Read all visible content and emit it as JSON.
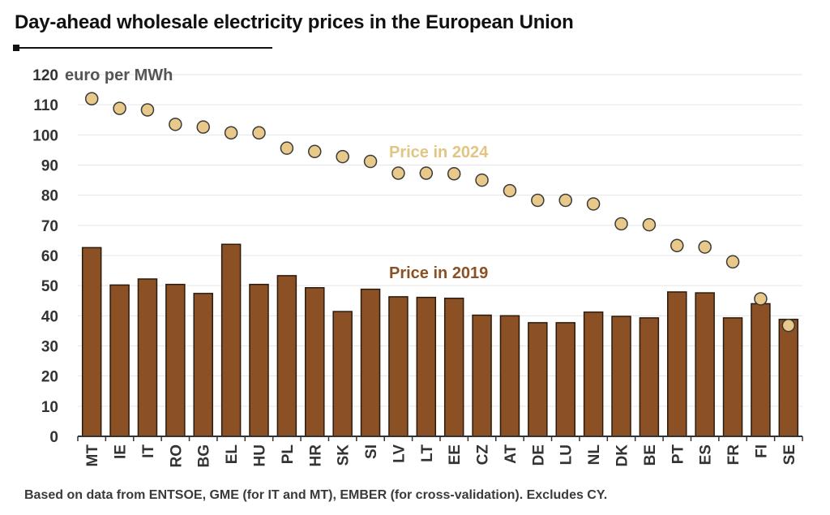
{
  "title": "Day-ahead wholesale electricity prices in the European Union",
  "source_note": "Based on data from ENTSOE, GME (for IT and MT), EMBER (for cross-validation). Excludes CY.",
  "colors": {
    "bar_2019": "#8b5023",
    "bar_stroke": "#2b1a0e",
    "dot_2024": "#e8c98a",
    "dot_stroke": "#3a3a3a",
    "label_2024": "#e2c583",
    "label_2019": "#8b5023",
    "grid": "#e6e6e6"
  },
  "chart_data": {
    "type": "bar",
    "title": "Day-ahead wholesale electricity prices in the European Union",
    "ylabel": "euro per MWh",
    "xlabel": "",
    "ylim": [
      0,
      120
    ],
    "yticks": [
      0,
      10,
      20,
      30,
      40,
      50,
      60,
      70,
      80,
      90,
      100,
      110,
      120
    ],
    "grid": true,
    "categories": [
      "MT",
      "IE",
      "IT",
      "RO",
      "BG",
      "EL",
      "HU",
      "PL",
      "HR",
      "SK",
      "SI",
      "LV",
      "LT",
      "EE",
      "CZ",
      "AT",
      "DE",
      "LU",
      "NL",
      "DK",
      "BE",
      "PT",
      "ES",
      "FR",
      "FI",
      "SE"
    ],
    "series": [
      {
        "name": "Price in 2019",
        "mark": "bar",
        "values": [
          62.6,
          50.2,
          52.2,
          50.4,
          47.4,
          63.7,
          50.4,
          53.3,
          49.3,
          41.4,
          48.8,
          46.3,
          46.1,
          45.8,
          40.2,
          40.0,
          37.7,
          37.7,
          41.2,
          39.8,
          39.3,
          47.9,
          47.6,
          39.3,
          44.0,
          38.8
        ]
      },
      {
        "name": "Price in 2024",
        "mark": "dot",
        "values": [
          112.0,
          108.8,
          108.3,
          103.5,
          102.6,
          100.7,
          100.7,
          95.6,
          94.5,
          92.8,
          91.2,
          87.3,
          87.3,
          87.1,
          85.0,
          81.5,
          78.3,
          78.3,
          77.1,
          70.5,
          70.2,
          63.3,
          62.8,
          57.9,
          45.6,
          36.8
        ]
      }
    ]
  }
}
